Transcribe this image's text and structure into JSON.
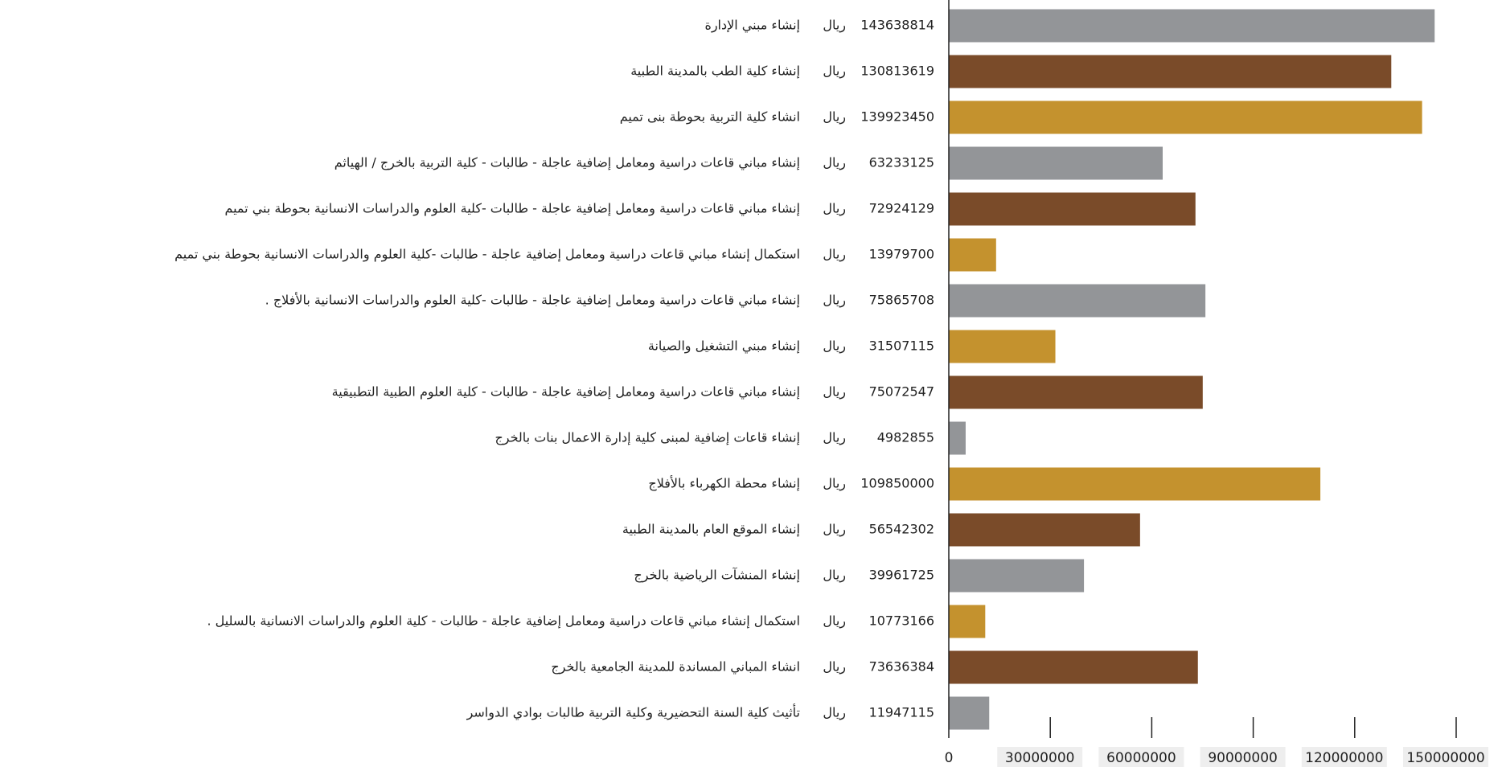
{
  "chart_data": {
    "type": "bar",
    "orientation": "horizontal",
    "unit": "ريال",
    "categories": [
      "إنشاء مبني الإدارة",
      "إنشاء كلية الطب بالمدينة الطبية",
      "انشاء كلية التربية بحوطة بنى تميم",
      "إنشاء مباني قاعات دراسية ومعامل إضافية عاجلة - طالبات - كلية التربية بالخرج / الهياثم",
      "إنشاء مباني قاعات دراسية ومعامل إضافية عاجلة - طالبات -كلية العلوم والدراسات الانسانية بحوطة بني تميم",
      "استكمال إنشاء مباني قاعات دراسية ومعامل إضافية عاجلة - طالبات -كلية العلوم والدراسات الانسانية بحوطة بني تميم",
      "إنشاء مباني قاعات دراسية ومعامل إضافية عاجلة - طالبات -كلية العلوم والدراسات الانسانية بالأفلاج .",
      "إنشاء مبني التشغيل والصيانة",
      "إنشاء مباني قاعات دراسية ومعامل إضافية عاجلة - طالبات - كلية العلوم الطبية التطبيقية",
      "إنشاء قاعات إضافية لمبنى كلية إدارة الاعمال بنات بالخرج",
      "إنشاء محطة الكهرباء بالأفلاج",
      "إنشاء الموقع العام بالمدينة الطبية",
      "إنشاء المنشآت الرياضية بالخرج",
      "استكمال إنشاء مباني قاعات دراسية ومعامل إضافية عاجلة - طالبات - كلية العلوم والدراسات الانسانية بالسليل .",
      "انشاء المباني المساندة للمدينة الجامعية بالخرج",
      "تأثيث كلية السنة التحضيرية وكلية التربية طالبات بوادي الدواسر"
    ],
    "values": [
      143638814,
      130813619,
      139923450,
      63233125,
      72924129,
      13979700,
      75865708,
      31507115,
      75072547,
      4982855,
      109850000,
      56542302,
      39961725,
      10773166,
      73636384,
      11947115
    ],
    "colors": [
      "#939598",
      "#7a4b29",
      "#c4922e",
      "#939598",
      "#7a4b29",
      "#c4922e",
      "#939598",
      "#c4922e",
      "#7a4b29",
      "#939598",
      "#c4922e",
      "#7a4b29",
      "#939598",
      "#c4922e",
      "#7a4b29",
      "#939598"
    ],
    "xlim": [
      0,
      150000000
    ],
    "xticks": [
      0,
      30000000,
      60000000,
      90000000,
      120000000,
      150000000
    ]
  }
}
